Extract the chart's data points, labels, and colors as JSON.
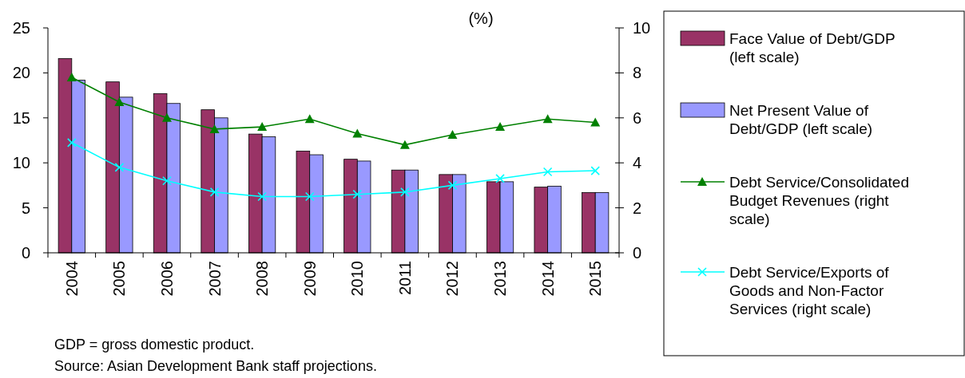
{
  "chart_data": {
    "type": "bar",
    "title": "(%)",
    "categories": [
      "2004",
      "2005",
      "2006",
      "2007",
      "2008",
      "2009",
      "2010",
      "2011",
      "2012",
      "2013",
      "2014",
      "2015"
    ],
    "series": [
      {
        "name": "Face Value of Debt/GDP (left scale)",
        "color": "#993366",
        "values": [
          21.6,
          19.0,
          17.7,
          15.9,
          13.2,
          11.3,
          10.4,
          9.2,
          8.7,
          7.9,
          7.3,
          6.7
        ]
      },
      {
        "name": "Net Present Value of Debt/GDP (left scale)",
        "color": "#9999ff",
        "values": [
          19.2,
          17.3,
          16.6,
          15.0,
          12.9,
          10.9,
          10.2,
          9.2,
          8.7,
          7.9,
          7.4,
          6.7
        ]
      },
      {
        "name": "Debt Service/Consolidated Budget Revenues (right scale)",
        "type": "line",
        "axis": "y2",
        "marker": "triangle",
        "color": "#008000",
        "values": [
          7.8,
          6.7,
          6.0,
          5.5,
          5.6,
          5.95,
          5.3,
          4.8,
          5.25,
          5.6,
          5.95,
          5.8
        ]
      },
      {
        "name": "Debt Service/Exports of Goods and Non-Factor Services (right scale)",
        "type": "line",
        "axis": "y2",
        "marker": "cross",
        "color": "#00ffff",
        "values": [
          4.9,
          3.8,
          3.2,
          2.7,
          2.5,
          2.5,
          2.6,
          2.7,
          3.0,
          3.3,
          3.6,
          3.65
        ]
      }
    ],
    "ylim": [
      0,
      25
    ],
    "yticks": [
      0,
      5,
      10,
      15,
      20,
      25
    ],
    "y2lim": [
      0,
      10
    ],
    "y2ticks": [
      0,
      2,
      4,
      6,
      8,
      10
    ],
    "grid": false,
    "legend": "right",
    "annotations": [
      "GDP = gross domestic product.",
      "Source: Asian Development Bank staff projections."
    ]
  }
}
